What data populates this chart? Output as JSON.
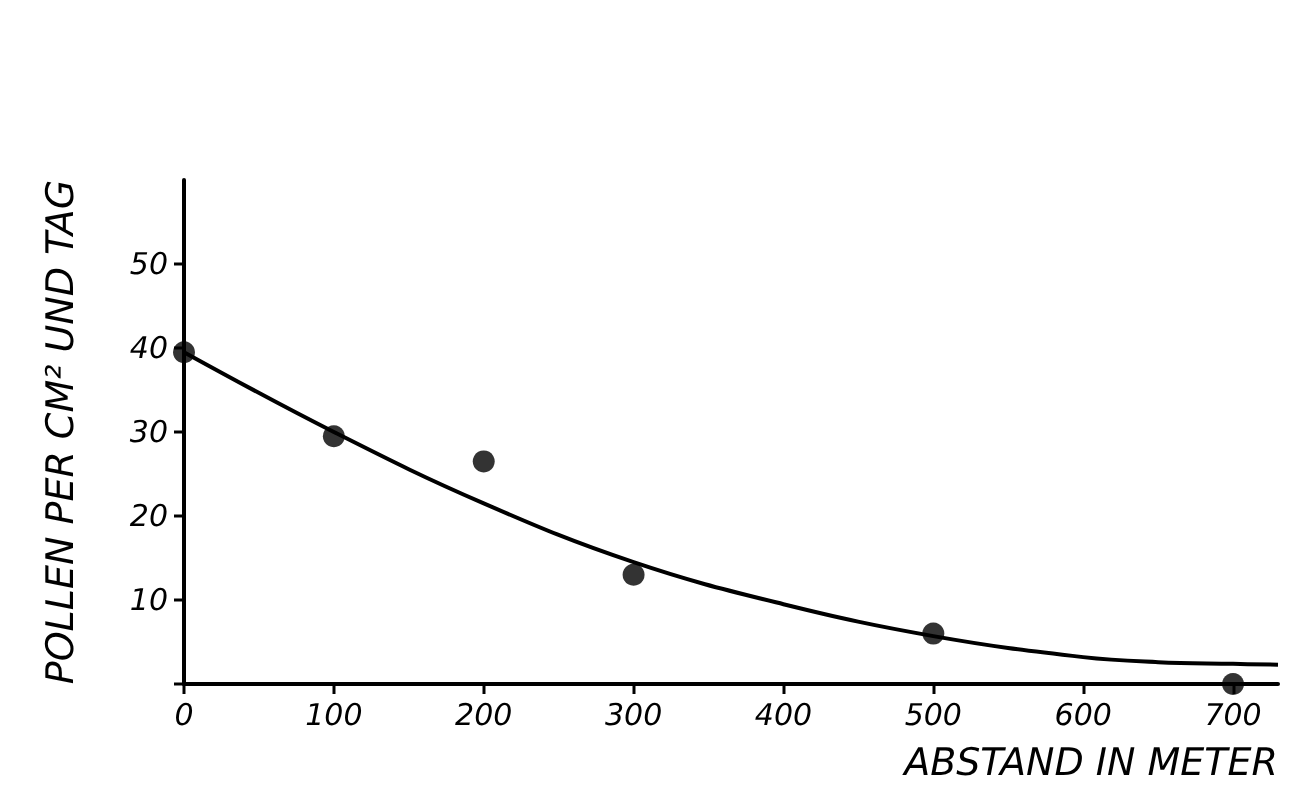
{
  "chart_data": {
    "type": "scatter",
    "xlabel": "ABSTAND IN METER",
    "ylabel": "POLLEN PER CM² UND TAG",
    "xlim": [
      0,
      730
    ],
    "xticks": [
      0,
      100,
      200,
      300,
      400,
      500,
      600,
      700
    ],
    "ylim": [
      0,
      60
    ],
    "yticks": [
      {
        "value": 0,
        "label": null
      },
      10,
      20,
      30,
      40,
      50
    ],
    "grid": false,
    "marker": "circle",
    "series": [
      {
        "color": "#000000",
        "x": [
          0,
          100,
          200,
          300,
          500,
          700
        ],
        "values": [
          39.5,
          29.5,
          26.5,
          13,
          6,
          0
        ]
      },
      {
        "type": "line",
        "color": "#000000",
        "marker": "none",
        "line_style": "solid",
        "x": [
          0,
          100,
          200,
          300,
          400,
          500,
          600,
          650,
          700,
          730
        ],
        "values": [
          39.5,
          30,
          21.5,
          14.5,
          9.5,
          5.7,
          3.2,
          2.6,
          2.4,
          2.3
        ]
      }
    ]
  }
}
